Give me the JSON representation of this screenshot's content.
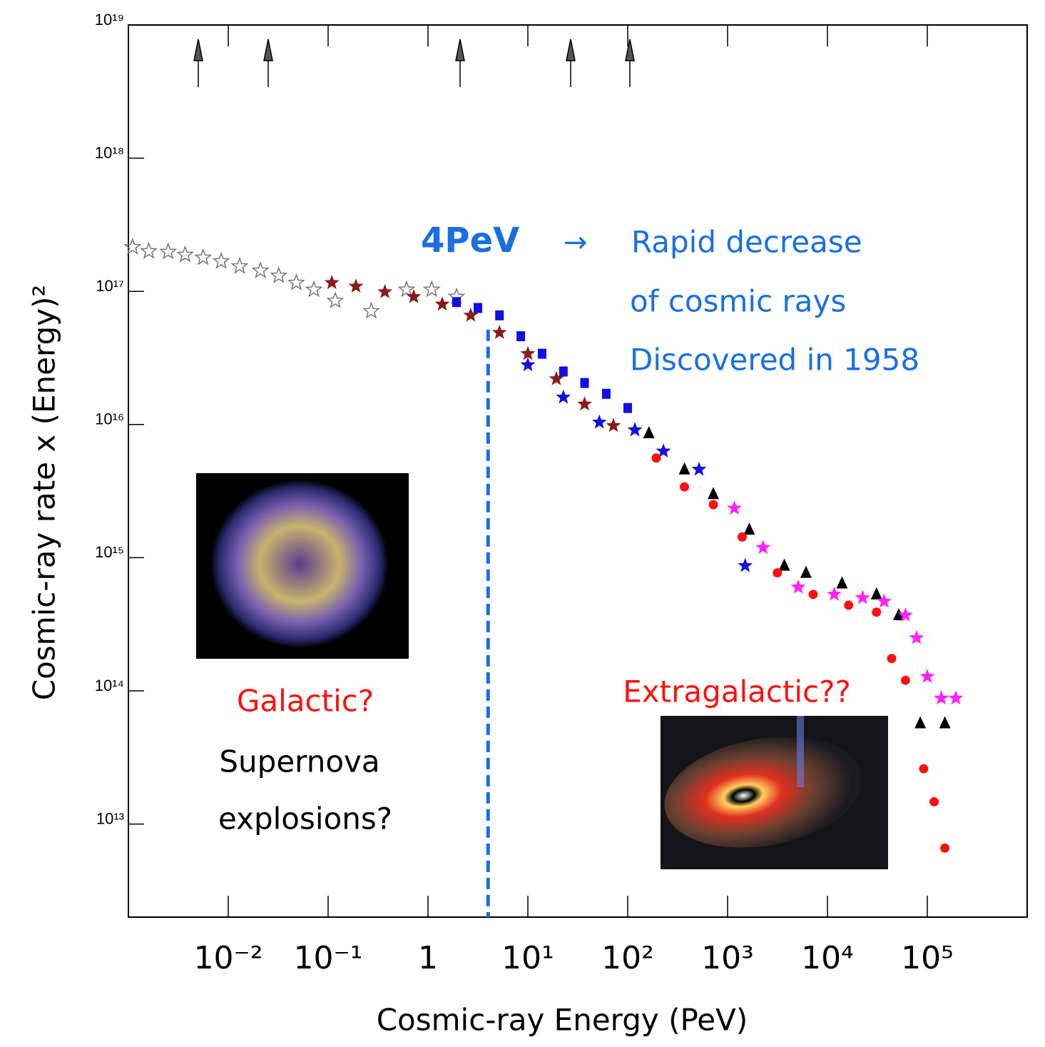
{
  "chart_data": {
    "type": "scatter",
    "x_label": "Cosmic-ray Energy (PeV)",
    "y_label": "Cosmic-ray rate x  (Energy)²",
    "xlog": true,
    "ylog": true,
    "xlim": [
      0.001,
      1000000
    ],
    "ylim": [
      2000000000000,
      10000000000000000000
    ],
    "xticks": [
      {
        "value": 0.01,
        "label": "10⁻²"
      },
      {
        "value": 0.1,
        "label": "10⁻¹"
      },
      1,
      {
        "value": 10,
        "label": "10¹"
      },
      {
        "value": 100,
        "label": "10²"
      },
      {
        "value": 1000,
        "label": "10³"
      },
      {
        "value": 10000,
        "label": "10⁴"
      },
      {
        "value": 100000,
        "label": "10⁵"
      }
    ],
    "yticks": [
      {
        "value": 10000000000000,
        "label": "10¹³"
      },
      {
        "value": 100000000000000,
        "label": "10¹⁴"
      },
      {
        "value": 1000000000000000,
        "label": "10¹⁵"
      },
      {
        "value": 10000000000000000,
        "label": "10¹⁶"
      },
      {
        "value": 100000000000000000,
        "label": "10¹⁷"
      },
      {
        "value": 1000000000000000000,
        "label": "10¹⁸"
      },
      {
        "value": 10000000000000000000,
        "label": "10¹⁹"
      }
    ],
    "vline_x": 4,
    "vline_color": "#1a6fe0",
    "annotations": {
      "knee": "4PeV",
      "arrow": "→",
      "line1": "Rapid decrease",
      "line2": "of cosmic rays",
      "line3": "Discovered in 1958",
      "galactic": "Galactic?",
      "sn1": "Supernova",
      "sn2": "explosions?",
      "extragalactic": "Extragalactic??"
    },
    "series": [
      {
        "marker": "open-star",
        "color": "#777777",
        "x": [
          0.0011,
          0.0016,
          0.0025,
          0.0037,
          0.0056,
          0.0085,
          0.013,
          0.021,
          0.032,
          0.048,
          0.072,
          0.118,
          0.27,
          0.61,
          1.09,
          1.93
        ],
        "values": [
          2.15e+17,
          2e+17,
          1.98e+17,
          1.88e+17,
          1.79e+17,
          1.68e+17,
          1.54e+17,
          1.43e+17,
          1.31e+17,
          1.16e+17,
          1.03e+17,
          8.5e+16,
          7.1e+16,
          1.03e+17,
          1.03e+17,
          9.1e+16
        ]
      },
      {
        "marker": "star",
        "color": "#8b1a1a",
        "x": [
          0.109,
          0.19,
          0.37,
          0.72,
          1.39,
          2.68,
          5.2,
          10,
          19.3,
          37,
          72,
          118
        ],
        "values": [
          1.16e+17,
          1.09e+17,
          9.9e+16,
          9.1e+16,
          8e+16,
          6.6e+16,
          4.9e+16,
          3.4e+16,
          2.2e+16,
          1.42e+16,
          9800000000000000.0,
          9100000000000000.0
        ]
      },
      {
        "marker": "square",
        "color": "#1010e0",
        "x": [
          1.93,
          3.16,
          5.2,
          8.5,
          13.9,
          22.7,
          37,
          61,
          100
        ],
        "values": [
          8.3e+16,
          7.5e+16,
          6.6e+16,
          4.6e+16,
          3.4e+16,
          2.5e+16,
          2.05e+16,
          1.7e+16,
          1.33e+16
        ]
      },
      {
        "marker": "star",
        "color": "#1010e0",
        "x": [
          10,
          22.7,
          52,
          118,
          228,
          518,
          1500
        ],
        "values": [
          2.8e+16,
          1.6e+16,
          1.04e+16,
          9100000000000000.0,
          6300000000000000.0,
          4600000000000000.0,
          870000000000000.0
        ]
      },
      {
        "marker": "triangle",
        "color": "#000000",
        "x": [
          163,
          370,
          720,
          1650,
          3700,
          6100,
          14000,
          31000,
          51800,
          85000,
          150000
        ],
        "values": [
          8600000000000000.0,
          4600000000000000.0,
          3000000000000000.0,
          1620000000000000.0,
          870000000000000.0,
          770000000000000.0,
          640000000000000.0,
          530000000000000.0,
          370000000000000.0,
          57000000000000.0,
          57000000000000.0
        ]
      },
      {
        "marker": "circle",
        "color": "#ff1010",
        "x": [
          193,
          370,
          720,
          1400,
          3150,
          7200,
          16300,
          31000,
          44000,
          60500,
          92000,
          117000,
          150000
        ],
        "values": [
          5600000000000000.0,
          3400000000000000.0,
          2500000000000000.0,
          1430000000000000.0,
          770000000000000.0,
          530000000000000.0,
          440000000000000.0,
          390000000000000.0,
          175000000000000.0,
          120000000000000.0,
          26000000000000.0,
          14700000000000.0,
          6600000000000.0
        ]
      },
      {
        "marker": "star",
        "color": "#ff22ff",
        "x": [
          1170,
          2270,
          5100,
          11700,
          22500,
          37000,
          60500,
          78000,
          100000,
          138000,
          193000
        ],
        "values": [
          2350000000000000.0,
          1190000000000000.0,
          600000000000000.0,
          530000000000000.0,
          500000000000000.0,
          470000000000000.0,
          370000000000000.0,
          250000000000000.0,
          128000000000000.0,
          88000000000000.0,
          88000000000000.0
        ]
      }
    ]
  }
}
